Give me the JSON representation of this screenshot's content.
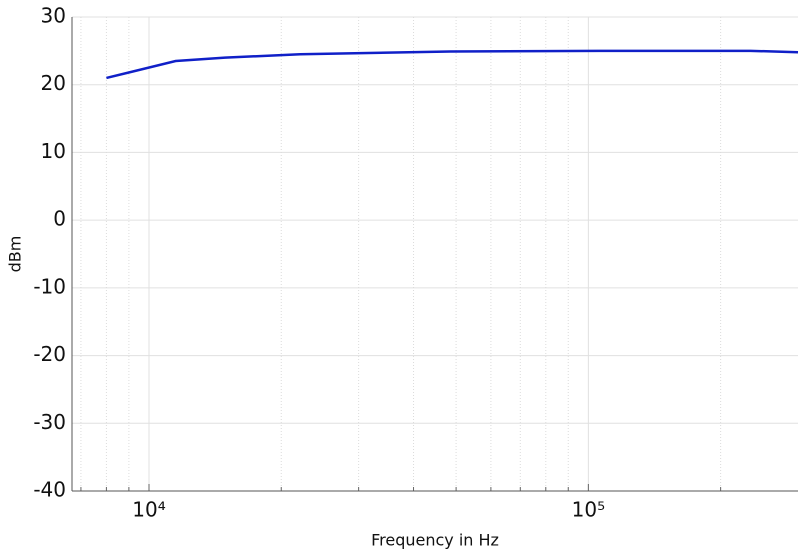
{
  "chart_data": {
    "type": "line",
    "x_label": "Frequency in Hz",
    "y_label": "dBm",
    "x_scale": "log",
    "grid": true,
    "xlim": [
      6680,
      300000
    ],
    "ylim": [
      -40,
      30
    ],
    "xticks": [
      {
        "value": 10000,
        "label": "10⁴"
      },
      {
        "value": 100000,
        "label": "10⁵"
      }
    ],
    "x_minor_ticks": [
      7000,
      8000,
      9000,
      20000,
      30000,
      40000,
      50000,
      60000,
      70000,
      80000,
      90000,
      200000
    ],
    "yticks": [
      -40,
      -30,
      -20,
      -10,
      0,
      10,
      20,
      30
    ],
    "series": [
      {
        "color": "#1020c8",
        "x": [
          8000,
          11500,
          14900,
          22100,
          48500,
          106000,
          234000,
          300000
        ],
        "values": [
          21,
          23.5,
          24,
          24.5,
          24.9,
          25,
          25,
          24.8
        ]
      }
    ]
  }
}
